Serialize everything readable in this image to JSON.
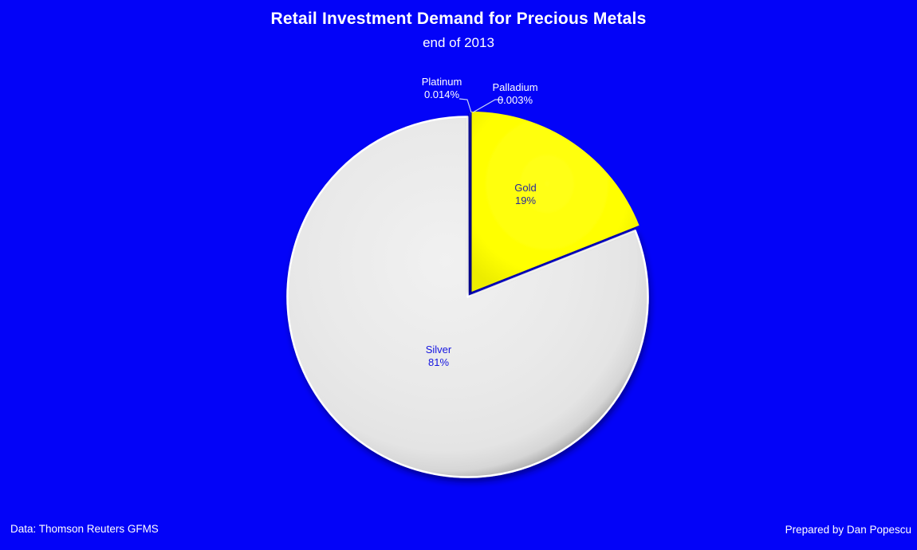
{
  "header": {
    "title": "Retail Investment Demand for Precious Metals",
    "subtitle": "end of 2013"
  },
  "footer": {
    "source": "Data: Thomson Reuters GFMS",
    "credit": "Prepared by Dan Popescu"
  },
  "colors": {
    "background": "#0303F8",
    "gold_slice": "#FFFF00",
    "silver_slice": "#E8E8E8",
    "gold_label_text": "#26269C",
    "silver_label_text": "#1414E0",
    "callout_text": "#FFFFFF",
    "leader_line": "#C9D6F4",
    "title_text": "#FFFFFF"
  },
  "chart_data": {
    "type": "pie",
    "title": "Retail Investment Demand for Precious Metals",
    "subtitle": "end of 2013",
    "start_angle_deg": 0,
    "direction": "clockwise",
    "legend": "none",
    "slices": [
      {
        "label": "Gold",
        "value_pct": 19,
        "display": "19%",
        "color": "#FFFF00",
        "label_style": "inside"
      },
      {
        "label": "Silver",
        "value_pct": 81,
        "display": "81%",
        "color": "#E8E8E8",
        "label_style": "inside"
      },
      {
        "label": "Platinum",
        "value_pct": 0.014,
        "display": "0.014%",
        "color": null,
        "label_style": "callout"
      },
      {
        "label": "Palladium",
        "value_pct": 0.003,
        "display": "0.003%",
        "color": null,
        "label_style": "callout"
      }
    ]
  }
}
